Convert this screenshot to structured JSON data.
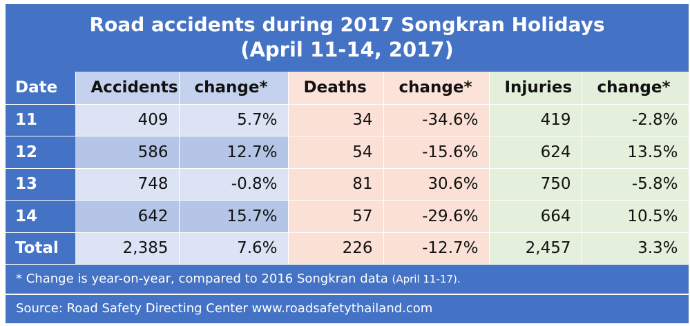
{
  "title": "Road accidents during 2017 Songkran Holidays",
  "subtitle": "(April 11-14, 2017)",
  "headers": [
    "Date",
    "Accidents",
    "change*",
    "Deaths",
    "change*",
    "Injuries",
    "change*"
  ],
  "rows": [
    [
      "11",
      "409",
      "5.7%",
      "34",
      "-34.6%",
      "419",
      "-2.8%"
    ],
    [
      "12",
      "586",
      "12.7%",
      "54",
      "-15.6%",
      "624",
      "13.5%"
    ],
    [
      "13",
      "748",
      "-0.8%",
      "81",
      "30.6%",
      "750",
      "-5.8%"
    ],
    [
      "14",
      "642",
      "15.7%",
      "57",
      "-29.6%",
      "664",
      "10.5%"
    ],
    [
      "Total",
      "2,385",
      "7.6%",
      "226",
      "-12.7%",
      "2,457",
      "3.3%"
    ]
  ],
  "footnote": "* Change is year-on-year, compared to 2016 Songkran data",
  "footnote_small": "(April 11-17).",
  "source": "Source:  Road Safety Directing Center www.roadsafetythailand.com",
  "chart_data": {
    "type": "table",
    "title": "Road accidents during 2017 Songkran Holidays",
    "subtitle": "(April 11-14, 2017)",
    "columns": [
      "Date",
      "Accidents",
      "change*",
      "Deaths",
      "change*",
      "Injuries",
      "change*"
    ],
    "rows": [
      [
        "11",
        409,
        "5.7%",
        34,
        "-34.6%",
        419,
        "-2.8%"
      ],
      [
        "12",
        586,
        "12.7%",
        54,
        "-15.6%",
        624,
        "13.5%"
      ],
      [
        "13",
        748,
        "-0.8%",
        81,
        "30.6%",
        750,
        "-5.8%"
      ],
      [
        "14",
        642,
        "15.7%",
        57,
        "-29.6%",
        664,
        "10.5%"
      ],
      [
        "Total",
        2385,
        "7.6%",
        226,
        "-12.7%",
        2457,
        "3.3%"
      ]
    ]
  },
  "colors": {
    "frame": "#4472c4",
    "accidents_light": "#dbe3f4",
    "accidents_dark": "#b4c5e7",
    "deaths": "#fbe0d5",
    "injuries": "#e4efdc"
  }
}
